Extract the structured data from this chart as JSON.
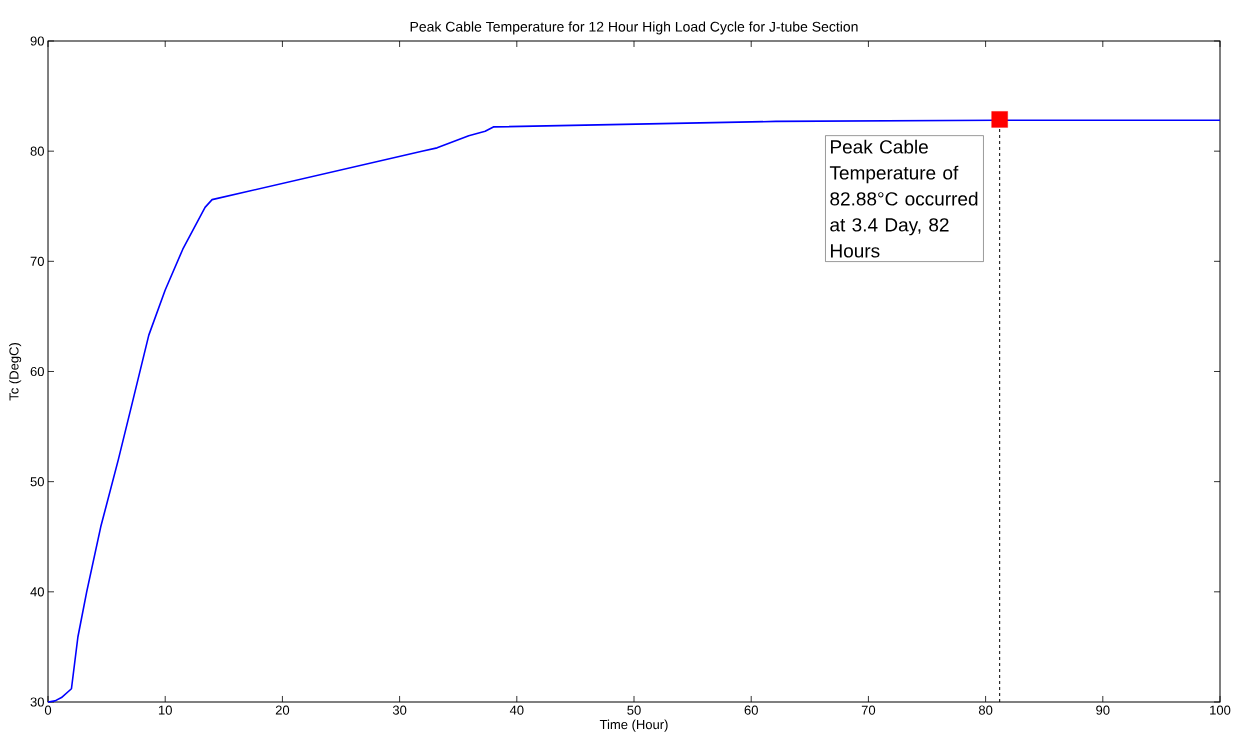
{
  "chart_data": {
    "type": "line",
    "title": "Peak Cable Temperature for 12 Hour High Load Cycle for J-tube Section",
    "xlabel": "Time (Hour)",
    "ylabel": "Tc (DegC)",
    "xlim": [
      0,
      100
    ],
    "ylim": [
      30,
      90
    ],
    "xticks": [
      0,
      10,
      20,
      30,
      40,
      50,
      60,
      70,
      80,
      90,
      100
    ],
    "yticks": [
      30,
      40,
      50,
      60,
      70,
      80,
      90
    ],
    "grid": false,
    "series": [
      {
        "color": "#0000ff",
        "x": [
          0,
          0.6,
          1.15,
          2.0,
          2.55,
          3.3,
          4.5,
          6.0,
          7.2,
          8.6,
          10,
          11.5,
          13.4,
          14,
          31.9,
          33.2,
          35.9,
          37.3,
          38.0,
          62.1,
          81.0,
          100
        ],
        "values": [
          30,
          30.1,
          30.4,
          31.2,
          35.9,
          40,
          45.9,
          52,
          57.2,
          63.3,
          67.4,
          71.1,
          74.9,
          75.6,
          80.0,
          80.3,
          81.4,
          81.8,
          82.2,
          82.7,
          82.8,
          82.8
        ]
      },
      {
        "type": "scatter",
        "marker": "square",
        "color": "#ff0000",
        "x": [
          81.2
        ],
        "values": [
          82.88
        ]
      }
    ],
    "ref_lines": [
      {
        "axis": "x",
        "value": 81.2,
        "color": "#000000",
        "line_style": "dashed"
      }
    ],
    "annotations": [
      {
        "text": "Peak Cable Temperature of 82.88°C occurred at 3.4 Day, 82 Hours",
        "x": 81.2,
        "y": 82.88
      }
    ]
  }
}
